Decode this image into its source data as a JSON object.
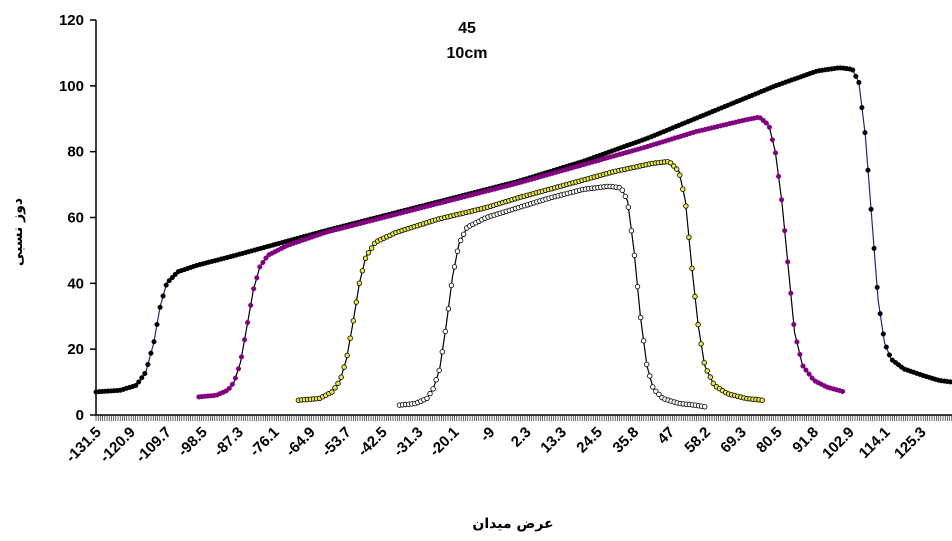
{
  "chart_data": {
    "type": "line",
    "title": "45",
    "subtitle": "10cm",
    "xlabel": "عرض میدان",
    "ylabel": "دوز نسبی",
    "xlim": [
      -131.5,
      135
    ],
    "ylim": [
      0,
      120
    ],
    "y_ticks": [
      0,
      20,
      40,
      60,
      80,
      100,
      120
    ],
    "x_tick_labels": [
      "-131.5",
      "-120.9",
      "-109.7",
      "-98.5",
      "-87.3",
      "-76.1",
      "-64.9",
      "-53.7",
      "-42.5",
      "-31.3",
      "-20.1",
      "-9",
      "2.3",
      "13.3",
      "24.5",
      "35.8",
      "47",
      "58.2",
      "69.3",
      "80.5",
      "91.8",
      "102.9",
      "114.1",
      "125.3"
    ],
    "x_tick_values": [
      -131.5,
      -120.9,
      -109.7,
      -98.5,
      -87.3,
      -76.1,
      -64.9,
      -53.7,
      -42.5,
      -31.3,
      -20.1,
      -9,
      2.3,
      13.3,
      24.5,
      35.8,
      47,
      58.2,
      69.3,
      80.5,
      91.8,
      102.9,
      114.1,
      125.3
    ],
    "grid": false,
    "legend": "none",
    "series": [
      {
        "color": "#000000",
        "marker": "filled-circle",
        "line_color": "#1f2a7a",
        "points": [
          [
            -131.5,
            7
          ],
          [
            -124,
            7.5
          ],
          [
            -119,
            9
          ],
          [
            -116,
            13
          ],
          [
            -113.5,
            22
          ],
          [
            -111.5,
            33
          ],
          [
            -109.5,
            40
          ],
          [
            -106,
            43.5
          ],
          [
            -100,
            45.5
          ],
          [
            -90,
            48
          ],
          [
            -75,
            52
          ],
          [
            -60,
            56
          ],
          [
            -40,
            61
          ],
          [
            -20,
            66
          ],
          [
            0,
            71
          ],
          [
            20,
            77
          ],
          [
            40,
            84
          ],
          [
            60,
            92
          ],
          [
            80,
            100
          ],
          [
            93,
            104.5
          ],
          [
            100,
            105.5
          ],
          [
            104,
            105
          ],
          [
            106,
            101
          ],
          [
            108,
            85
          ],
          [
            110,
            60
          ],
          [
            112,
            35
          ],
          [
            114,
            22
          ],
          [
            116,
            17
          ],
          [
            120,
            14
          ],
          [
            126,
            12
          ],
          [
            131,
            10.5
          ],
          [
            135,
            10
          ]
        ]
      },
      {
        "color": "#800080",
        "marker": "filled-circle",
        "line_color": "#000000",
        "points": [
          [
            -99.5,
            5.5
          ],
          [
            -94,
            6
          ],
          [
            -90.5,
            7.5
          ],
          [
            -88.5,
            10
          ],
          [
            -86.5,
            16
          ],
          [
            -84.5,
            27
          ],
          [
            -82.5,
            38
          ],
          [
            -80.5,
            45
          ],
          [
            -78,
            48.5
          ],
          [
            -72,
            51.5
          ],
          [
            -60,
            55.5
          ],
          [
            -40,
            60.5
          ],
          [
            -20,
            65.5
          ],
          [
            0,
            70.5
          ],
          [
            20,
            76
          ],
          [
            40,
            81.5
          ],
          [
            55,
            86
          ],
          [
            70,
            89.5
          ],
          [
            75,
            90.5
          ],
          [
            78,
            88
          ],
          [
            80,
            80
          ],
          [
            82,
            65
          ],
          [
            84,
            45
          ],
          [
            86,
            25
          ],
          [
            88.5,
            15
          ],
          [
            92,
            10.5
          ],
          [
            96,
            8.5
          ],
          [
            101.5,
            7
          ]
        ]
      },
      {
        "color": "#e8e848",
        "marker": "hollow-circle",
        "line_color": "#000000",
        "points": [
          [
            -68.5,
            4.5
          ],
          [
            -62,
            5
          ],
          [
            -58,
            7
          ],
          [
            -55.5,
            10.5
          ],
          [
            -53.5,
            17
          ],
          [
            -51.5,
            28
          ],
          [
            -49.5,
            40
          ],
          [
            -47.5,
            48
          ],
          [
            -44.5,
            52.5
          ],
          [
            -38,
            55.5
          ],
          [
            -25,
            59.5
          ],
          [
            -10,
            63
          ],
          [
            0,
            66
          ],
          [
            15,
            70
          ],
          [
            30,
            74
          ],
          [
            42,
            76.5
          ],
          [
            47,
            77
          ],
          [
            50,
            74
          ],
          [
            52,
            65
          ],
          [
            54,
            45
          ],
          [
            56,
            27
          ],
          [
            58,
            15
          ],
          [
            61,
            9
          ],
          [
            65,
            6.5
          ],
          [
            71,
            5
          ],
          [
            76,
            4.5
          ]
        ]
      },
      {
        "color": "#ffffff",
        "marker": "hollow-circle",
        "line_color": "#000000",
        "points": [
          [
            -37,
            3
          ],
          [
            -32,
            3.5
          ],
          [
            -28.5,
            5
          ],
          [
            -26.5,
            8
          ],
          [
            -24.5,
            14
          ],
          [
            -22.5,
            27
          ],
          [
            -20.5,
            42
          ],
          [
            -18.5,
            52
          ],
          [
            -16,
            57
          ],
          [
            -10,
            60
          ],
          [
            0,
            63
          ],
          [
            10,
            66
          ],
          [
            20,
            68.5
          ],
          [
            28,
            69.5
          ],
          [
            32,
            69
          ],
          [
            34,
            65
          ],
          [
            36,
            50
          ],
          [
            38,
            30
          ],
          [
            40,
            15
          ],
          [
            42,
            8
          ],
          [
            45,
            5
          ],
          [
            50,
            3.5
          ],
          [
            55,
            3
          ],
          [
            58,
            2.5
          ]
        ]
      }
    ]
  }
}
